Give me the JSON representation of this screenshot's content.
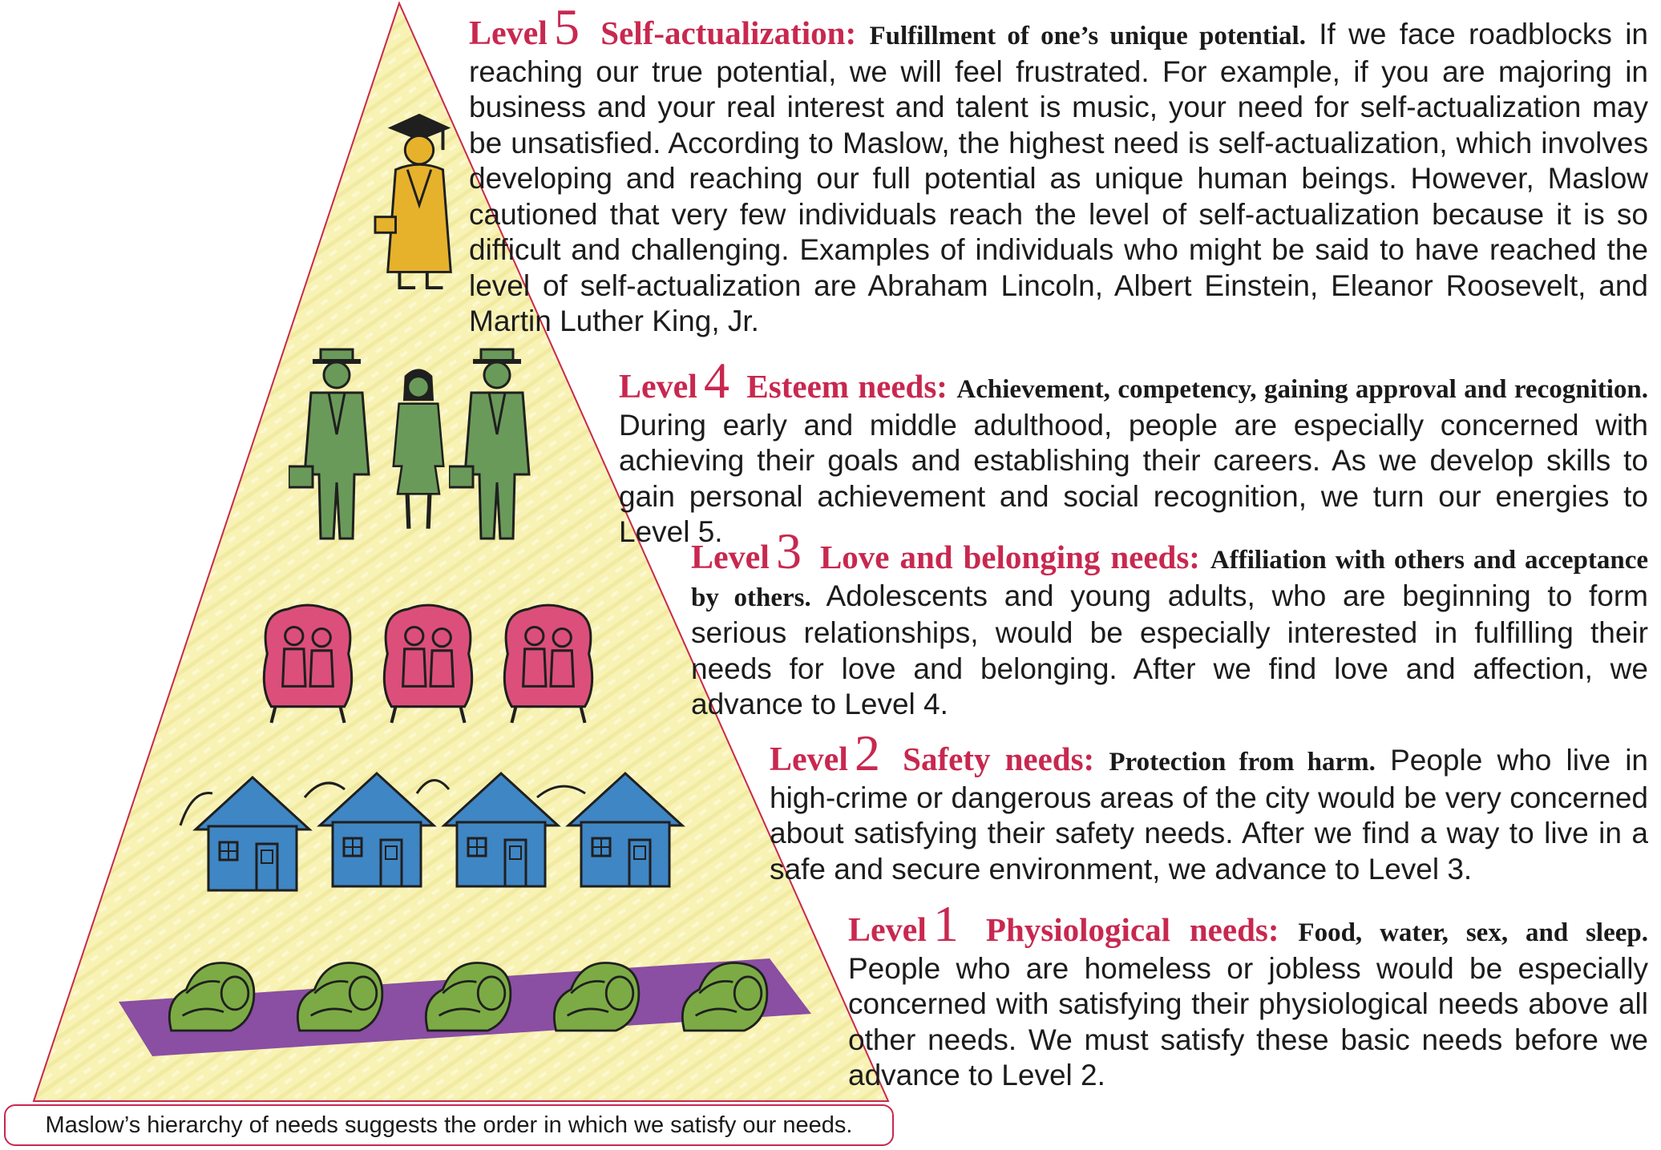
{
  "colors": {
    "accent": "#c8284f",
    "pyramid_fill": "#f8f3b4",
    "graduate": "#e6b22c",
    "professionals": "#6a9a5a",
    "couples": "#dc4f7a",
    "houses": "#3f86c4",
    "sleepers": "#7cab45",
    "mat": "#8a4ea3"
  },
  "icons": {
    "level5": "graduate-icon",
    "level4": "professional-icon",
    "level3": "couple-icon",
    "level2": "house-icon",
    "level1": "sleeping-person-icon"
  },
  "levels": [
    {
      "word": "Level",
      "number": "5",
      "title": "Self-actualization:",
      "definition": "Fulfillment of one’s unique potential.",
      "text": "If we face roadblocks in reaching our true potential, we will feel frustrated. For example, if you are majoring in business and your real interest and talent is music, your need for self-actualization may be unsatisfied. According to Maslow, the highest need is self-actualization, which involves developing and reaching our full potential as unique human beings. However, Maslow cautioned that very few individuals reach the level of self-actualization because it is so difficult and challenging. Examples of individuals who might be said to have reached the level of self-actualization are Abraham Lincoln, Albert Einstein, Eleanor Roosevelt, and Martin Luther King, Jr."
    },
    {
      "word": "Level",
      "number": "4",
      "title": "Esteem needs:",
      "definition": "Achievement, competency, gaining approval and recognition.",
      "text": "During early and middle adulthood, people are especially concerned with achieving their goals and establishing their careers. As we develop skills to gain personal achievement and social recognition, we turn our energies to Level 5."
    },
    {
      "word": "Level",
      "number": "3",
      "title": "Love and belonging needs:",
      "definition": "Affiliation with others and acceptance by others.",
      "text": "Adolescents and young adults, who are beginning to form serious relationships, would be especially interested in fulfilling their needs for love and belonging. After we find love and affection, we advance to Level 4."
    },
    {
      "word": "Level",
      "number": "2",
      "title": "Safety needs:",
      "definition": "Protection from harm.",
      "text": "People who live in high-crime or dangerous areas of the city would be very concerned about satisfying their safety needs. After we find a way to live in a safe and secure environment, we advance to Level 3."
    },
    {
      "word": "Level",
      "number": "1",
      "title": "Physiological needs:",
      "definition": "Food, water, sex, and sleep.",
      "text": "People who are homeless or jobless would be especially concerned with satisfying their physiological needs above all other needs. We must satisfy these basic needs before we advance to Level 2."
    }
  ],
  "caption": "Maslow’s hierarchy of needs suggests the order in which we satisfy our needs."
}
